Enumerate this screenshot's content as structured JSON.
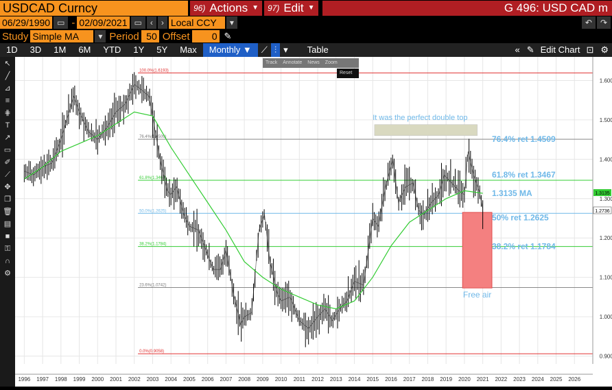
{
  "header": {
    "ticker": "USDCAD Curncy",
    "actions_num": "96)",
    "actions_label": "Actions",
    "edit_num": "97)",
    "edit_label": "Edit",
    "title": "G 496: USD CAD m"
  },
  "dates": {
    "start": "06/29/1990",
    "end": "02/09/2021",
    "currency": "Local CCY"
  },
  "study": {
    "label": "Study",
    "value": "Simple MA",
    "period_label": "Period",
    "period": "50",
    "offset_label": "Offset",
    "offset": "0"
  },
  "tabs": [
    "1D",
    "3D",
    "1M",
    "6M",
    "YTD",
    "1Y",
    "5Y",
    "Max"
  ],
  "frequency": "Monthly",
  "table_label": "Table",
  "edit_chart_label": "Edit Chart",
  "mini_toolbar": [
    "Track",
    "Annotate",
    "News",
    "Zoom"
  ],
  "reset_label": "Reset",
  "colors": {
    "price": "#ffffff",
    "ma": "#33cc33",
    "fib_label": "#6fb8e8",
    "box": "#f48080",
    "top_box": "#d9d9c0"
  },
  "chart_data": {
    "type": "line",
    "ylim": [
      0.88,
      1.66
    ],
    "xlim": [
      1995.5,
      2027.0
    ],
    "years": [
      "1996",
      "1997",
      "1998",
      "1999",
      "2000",
      "2001",
      "2002",
      "2003",
      "2004",
      "2005",
      "2006",
      "2007",
      "2008",
      "2009",
      "2010",
      "2011",
      "2012",
      "2013",
      "2014",
      "2015",
      "2016",
      "2017",
      "2018",
      "2019",
      "2020",
      "2021",
      "2022",
      "2023",
      "2024",
      "2025",
      "2026"
    ],
    "y_ticks": [
      "1.6000",
      "1.5000",
      "1.4000",
      "1.3000",
      "1.2000",
      "1.1000",
      "1.0000",
      "0.9000"
    ],
    "price": [
      [
        1996,
        1.37
      ],
      [
        1996.5,
        1.36
      ],
      [
        1997,
        1.38
      ],
      [
        1997.5,
        1.39
      ],
      [
        1998,
        1.45
      ],
      [
        1998.7,
        1.56
      ],
      [
        1999,
        1.52
      ],
      [
        1999.5,
        1.47
      ],
      [
        2000,
        1.45
      ],
      [
        2000.5,
        1.48
      ],
      [
        2001,
        1.52
      ],
      [
        2001.5,
        1.54
      ],
      [
        2002,
        1.59
      ],
      [
        2002.3,
        1.58
      ],
      [
        2002.8,
        1.56
      ],
      [
        2003,
        1.51
      ],
      [
        2003.4,
        1.4
      ],
      [
        2003.8,
        1.32
      ],
      [
        2004,
        1.31
      ],
      [
        2004.3,
        1.33
      ],
      [
        2004.7,
        1.26
      ],
      [
        2005,
        1.23
      ],
      [
        2005.5,
        1.22
      ],
      [
        2005.9,
        1.17
      ],
      [
        2006.3,
        1.12
      ],
      [
        2006.7,
        1.12
      ],
      [
        2007,
        1.17
      ],
      [
        2007.4,
        1.06
      ],
      [
        2007.8,
        0.98
      ],
      [
        2008.0,
        1.0
      ],
      [
        2008.4,
        1.01
      ],
      [
        2008.8,
        1.22
      ],
      [
        2009.1,
        1.26
      ],
      [
        2009.4,
        1.14
      ],
      [
        2009.8,
        1.06
      ],
      [
        2010,
        1.04
      ],
      [
        2010.5,
        1.05
      ],
      [
        2011,
        0.99
      ],
      [
        2011.5,
        0.97
      ],
      [
        2012,
        1.0
      ],
      [
        2012.4,
        1.02
      ],
      [
        2012.8,
        0.99
      ],
      [
        2013.2,
        1.02
      ],
      [
        2013.6,
        1.04
      ],
      [
        2014,
        1.09
      ],
      [
        2014.5,
        1.08
      ],
      [
        2015,
        1.25
      ],
      [
        2015.3,
        1.23
      ],
      [
        2015.7,
        1.33
      ],
      [
        2016.1,
        1.4
      ],
      [
        2016.4,
        1.29
      ],
      [
        2016.8,
        1.33
      ],
      [
        2017.2,
        1.34
      ],
      [
        2017.5,
        1.27
      ],
      [
        2017.8,
        1.26
      ],
      [
        2018.2,
        1.29
      ],
      [
        2018.6,
        1.31
      ],
      [
        2018.9,
        1.36
      ],
      [
        2019.3,
        1.34
      ],
      [
        2019.7,
        1.32
      ],
      [
        2020,
        1.31
      ],
      [
        2020.2,
        1.42
      ],
      [
        2020.5,
        1.36
      ],
      [
        2020.8,
        1.32
      ],
      [
        2021.0,
        1.2736
      ]
    ],
    "ma": [
      [
        1996,
        1.35
      ],
      [
        1997,
        1.38
      ],
      [
        1998,
        1.42
      ],
      [
        1999,
        1.44
      ],
      [
        2000,
        1.46
      ],
      [
        2001,
        1.49
      ],
      [
        2002,
        1.52
      ],
      [
        2003,
        1.51
      ],
      [
        2004,
        1.43
      ],
      [
        2005,
        1.36
      ],
      [
        2006,
        1.29
      ],
      [
        2007,
        1.22
      ],
      [
        2008,
        1.14
      ],
      [
        2009,
        1.1
      ],
      [
        2010,
        1.07
      ],
      [
        2011,
        1.05
      ],
      [
        2012,
        1.03
      ],
      [
        2013,
        1.02
      ],
      [
        2014,
        1.04
      ],
      [
        2015,
        1.1
      ],
      [
        2016,
        1.18
      ],
      [
        2017,
        1.24
      ],
      [
        2018,
        1.27
      ],
      [
        2019,
        1.3
      ],
      [
        2020,
        1.32
      ],
      [
        2021,
        1.3135
      ]
    ],
    "fib_levels": [
      {
        "level": 1.6193,
        "label": "100.0%(1.6193)",
        "color": "#e03030"
      },
      {
        "level": 1.4509,
        "label": "76.4%(1.4509)",
        "color": "#888888"
      },
      {
        "level": 1.3467,
        "label": "61.8%(1.3467)",
        "color": "#33cc33"
      },
      {
        "level": 1.2625,
        "label": "50.0%(1.2625)",
        "color": "#6fb8e8"
      },
      {
        "level": 1.1784,
        "label": "38.2%(1.1784)",
        "color": "#33cc33"
      },
      {
        "level": 1.0742,
        "label": "23.6%(1.0742)",
        "color": "#888888"
      },
      {
        "level": 0.9058,
        "label": "0.0%(0.9058)",
        "color": "#e03030"
      }
    ],
    "annotations": {
      "double_top": "It was the perfect double top",
      "r764": "76.4% ret 1.4509",
      "r618": "61.8% ret 1.3467",
      "ma": "1.3135 MA",
      "r50": "50% ret 1.2625",
      "r382": "38.2% ret 1.1784",
      "free_air": "Free air"
    },
    "last_ma": "1.3135",
    "last_price": "1.2736"
  }
}
